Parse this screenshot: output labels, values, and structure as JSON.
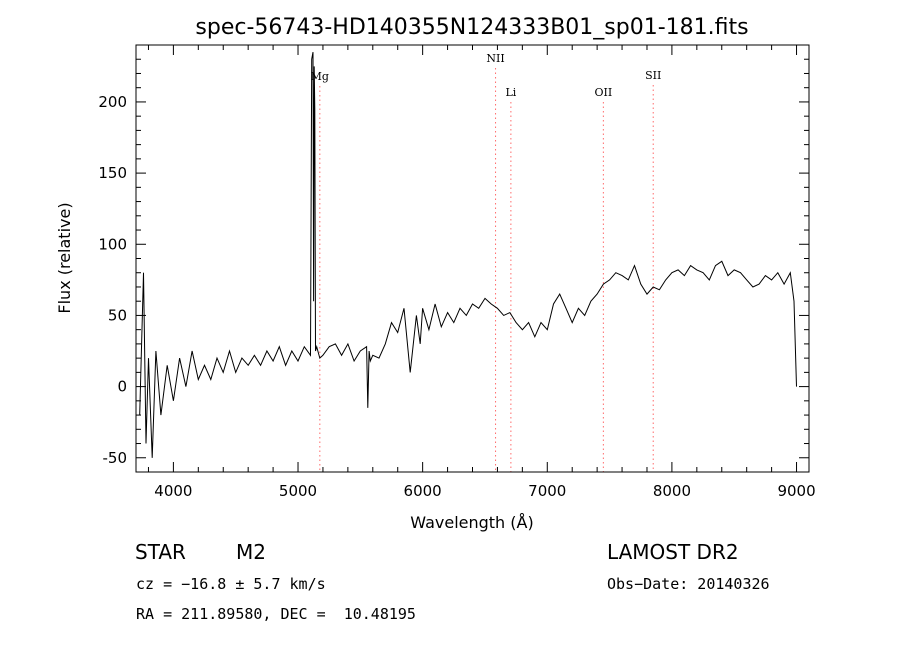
{
  "chart_data": {
    "type": "line",
    "title": "spec-56743-HD140355N124333B01_sp01-181.fits",
    "xlabel": "Wavelength (Å)",
    "ylabel": "Flux (relative)",
    "xlim": [
      3700,
      9100
    ],
    "ylim": [
      -60,
      240
    ],
    "x_ticks": [
      4000,
      5000,
      6000,
      7000,
      8000,
      9000
    ],
    "y_ticks": [
      -50,
      0,
      50,
      100,
      150,
      200
    ],
    "grid": false,
    "line_color": "#000000",
    "marker_color": "#ff6b6b",
    "series": [
      {
        "x": [
          3730,
          3760,
          3780,
          3800,
          3830,
          3860,
          3900,
          3950,
          4000,
          4050,
          4100,
          4150,
          4200,
          4250,
          4300,
          4350,
          4400,
          4450,
          4500,
          4550,
          4600,
          4650,
          4700,
          4750,
          4800,
          4850,
          4900,
          4950,
          5000,
          5050,
          5100,
          5110,
          5120,
          5125,
          5130,
          5135,
          5140,
          5150,
          5175,
          5200,
          5250,
          5300,
          5350,
          5400,
          5450,
          5500,
          5550,
          5560,
          5570,
          5580,
          5600,
          5650,
          5700,
          5750,
          5800,
          5850,
          5900,
          5950,
          5980,
          6000,
          6050,
          6100,
          6150,
          6200,
          6250,
          6300,
          6350,
          6400,
          6450,
          6500,
          6550,
          6600,
          6650,
          6700,
          6750,
          6800,
          6850,
          6900,
          6950,
          7000,
          7050,
          7100,
          7150,
          7200,
          7250,
          7300,
          7350,
          7400,
          7450,
          7500,
          7550,
          7600,
          7650,
          7700,
          7750,
          7800,
          7850,
          7900,
          7950,
          8000,
          8050,
          8100,
          8150,
          8200,
          8250,
          8300,
          8350,
          8400,
          8450,
          8500,
          8550,
          8600,
          8650,
          8700,
          8750,
          8800,
          8850,
          8900,
          8950,
          8980,
          9000
        ],
        "y": [
          -20,
          80,
          -40,
          20,
          -50,
          25,
          -20,
          15,
          -10,
          20,
          0,
          25,
          5,
          15,
          5,
          20,
          10,
          25,
          10,
          20,
          15,
          22,
          15,
          25,
          18,
          28,
          15,
          25,
          18,
          28,
          22,
          230,
          235,
          60,
          225,
          195,
          25,
          28,
          20,
          22,
          28,
          30,
          22,
          30,
          18,
          25,
          28,
          -15,
          25,
          18,
          22,
          20,
          30,
          45,
          38,
          55,
          10,
          50,
          30,
          55,
          40,
          58,
          42,
          52,
          45,
          55,
          50,
          58,
          55,
          62,
          58,
          55,
          50,
          52,
          45,
          40,
          45,
          35,
          45,
          40,
          58,
          65,
          55,
          45,
          55,
          50,
          60,
          65,
          72,
          75,
          80,
          78,
          75,
          85,
          72,
          65,
          70,
          68,
          75,
          80,
          82,
          78,
          85,
          82,
          80,
          75,
          85,
          88,
          78,
          82,
          80,
          75,
          70,
          72,
          78,
          75,
          80,
          72,
          80,
          60,
          0
        ]
      }
    ],
    "lines": [
      {
        "label": "Mg",
        "x": 5175
      },
      {
        "label": "NII",
        "x": 6585
      },
      {
        "label": "Li",
        "x": 6708
      },
      {
        "label": "OII",
        "x": 7450
      },
      {
        "label": "SII",
        "x": 7850
      }
    ]
  },
  "info": {
    "class_label": "STAR",
    "subclass": "M2",
    "survey": "LAMOST DR2",
    "cz": "cz = −16.8 ± 5.7 km/s",
    "obs_date": "Obs−Date: 20140326",
    "coords": "RA = 211.89580, DEC =  10.48195"
  }
}
